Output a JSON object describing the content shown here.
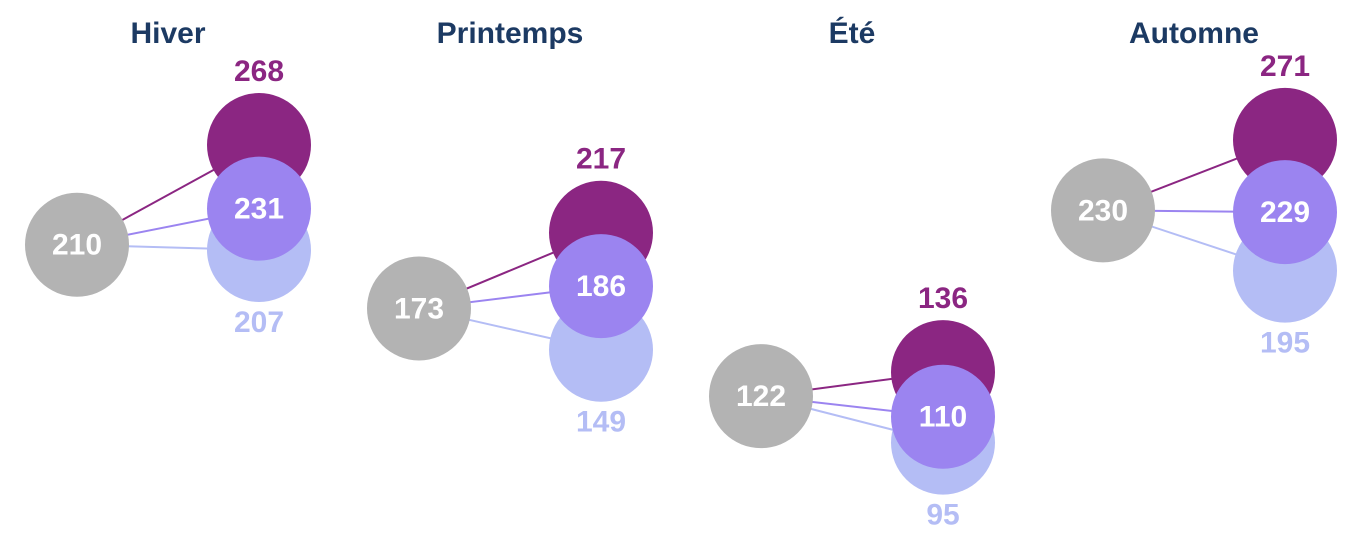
{
  "chart_data": {
    "type": "dot",
    "categories": [
      "Hiver",
      "Printemps",
      "Été",
      "Automne"
    ],
    "series": [
      {
        "color": "#b3b3b3",
        "values": [
          210,
          173,
          122,
          230
        ]
      },
      {
        "color": "#8b2682",
        "values": [
          268,
          217,
          136,
          271
        ]
      },
      {
        "color": "#9b84f0",
        "values": [
          231,
          186,
          110,
          229
        ]
      },
      {
        "color": "#b4bdf5",
        "values": [
          207,
          149,
          95,
          195
        ]
      }
    ]
  }
}
